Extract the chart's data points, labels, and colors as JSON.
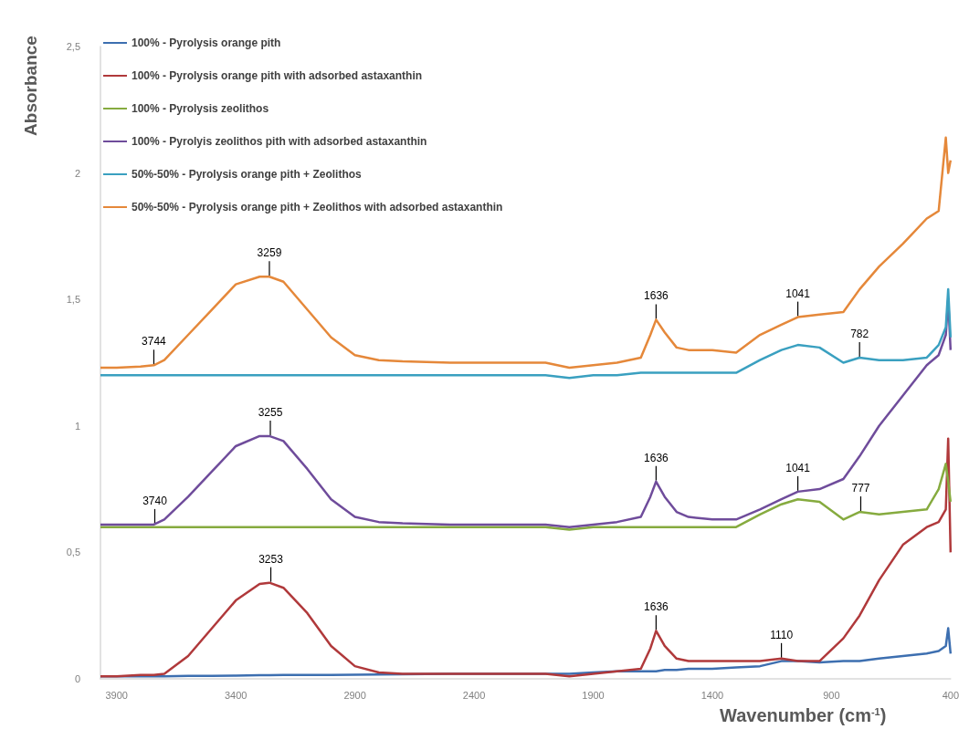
{
  "chart_data": {
    "type": "line",
    "xlabel": "Wavenumber (cm$^{-1}$)",
    "ylabel": "Absorbance",
    "x": [
      3968,
      3900,
      3800,
      3744,
      3700,
      3600,
      3500,
      3400,
      3300,
      3259,
      3200,
      3100,
      3000,
      2900,
      2800,
      2700,
      2500,
      2300,
      2100,
      2000,
      1900,
      1800,
      1700,
      1660,
      1636,
      1600,
      1550,
      1500,
      1400,
      1300,
      1200,
      1110,
      1041,
      950,
      850,
      782,
      700,
      600,
      500,
      450,
      420,
      410,
      400
    ],
    "series": [
      {
        "name": "100% - Pyrolysis orange pith",
        "color": "#3d6fb0",
        "values": [
          0.01,
          0.01,
          0.01,
          0.01,
          0.01,
          0.012,
          0.012,
          0.013,
          0.014,
          0.014,
          0.015,
          0.015,
          0.015,
          0.016,
          0.017,
          0.018,
          0.02,
          0.02,
          0.02,
          0.02,
          0.025,
          0.03,
          0.03,
          0.03,
          0.03,
          0.035,
          0.035,
          0.04,
          0.04,
          0.045,
          0.05,
          0.07,
          0.07,
          0.065,
          0.07,
          0.07,
          0.08,
          0.09,
          0.1,
          0.11,
          0.13,
          0.2,
          0.1
        ]
      },
      {
        "name": "100% - Pyrolysis orange pith with adsorbed astaxanthin",
        "color": "#b0393b",
        "values": [
          0.01,
          0.01,
          0.015,
          0.015,
          0.02,
          0.09,
          0.2,
          0.31,
          0.375,
          0.38,
          0.36,
          0.26,
          0.13,
          0.05,
          0.025,
          0.02,
          0.02,
          0.02,
          0.02,
          0.01,
          0.02,
          0.03,
          0.04,
          0.12,
          0.19,
          0.13,
          0.08,
          0.07,
          0.07,
          0.07,
          0.07,
          0.08,
          0.07,
          0.07,
          0.16,
          0.25,
          0.39,
          0.53,
          0.6,
          0.62,
          0.67,
          0.95,
          0.5
        ]
      },
      {
        "name": "100% - Pyrolysis zeolithos",
        "color": "#86ab3f",
        "values": [
          0.6,
          0.6,
          0.6,
          0.6,
          0.6,
          0.6,
          0.6,
          0.6,
          0.6,
          0.6,
          0.6,
          0.6,
          0.6,
          0.6,
          0.6,
          0.6,
          0.6,
          0.6,
          0.6,
          0.59,
          0.6,
          0.6,
          0.6,
          0.6,
          0.6,
          0.6,
          0.6,
          0.6,
          0.6,
          0.6,
          0.65,
          0.69,
          0.71,
          0.7,
          0.63,
          0.66,
          0.65,
          0.66,
          0.67,
          0.75,
          0.85,
          0.78,
          0.7
        ]
      },
      {
        "name": "100% - Pyrolyis zeolithos pith with adsorbed astaxanthin",
        "color": "#6f4c9b",
        "values": [
          0.61,
          0.61,
          0.61,
          0.61,
          0.63,
          0.72,
          0.82,
          0.92,
          0.96,
          0.96,
          0.94,
          0.83,
          0.71,
          0.64,
          0.62,
          0.615,
          0.61,
          0.61,
          0.61,
          0.6,
          0.61,
          0.62,
          0.64,
          0.72,
          0.78,
          0.72,
          0.66,
          0.64,
          0.63,
          0.63,
          0.67,
          0.71,
          0.74,
          0.75,
          0.79,
          0.88,
          1.0,
          1.12,
          1.24,
          1.28,
          1.36,
          1.5,
          1.3
        ]
      },
      {
        "name": "50%-50% - Pyrolysis orange pith + Zeolithos",
        "color": "#3aa0c0",
        "values": [
          1.2,
          1.2,
          1.2,
          1.2,
          1.2,
          1.2,
          1.2,
          1.2,
          1.2,
          1.2,
          1.2,
          1.2,
          1.2,
          1.2,
          1.2,
          1.2,
          1.2,
          1.2,
          1.2,
          1.19,
          1.2,
          1.2,
          1.21,
          1.21,
          1.21,
          1.21,
          1.21,
          1.21,
          1.21,
          1.21,
          1.26,
          1.3,
          1.32,
          1.31,
          1.25,
          1.27,
          1.26,
          1.26,
          1.27,
          1.32,
          1.39,
          1.54,
          1.35
        ]
      },
      {
        "name": "50%-50% - Pyrolysis orange pith + Zeolithos with adsorbed astaxanthin",
        "color": "#e5883a",
        "values": [
          1.23,
          1.23,
          1.235,
          1.24,
          1.26,
          1.36,
          1.46,
          1.56,
          1.59,
          1.59,
          1.57,
          1.46,
          1.35,
          1.28,
          1.26,
          1.255,
          1.25,
          1.25,
          1.25,
          1.23,
          1.24,
          1.25,
          1.27,
          1.36,
          1.42,
          1.37,
          1.31,
          1.3,
          1.3,
          1.29,
          1.36,
          1.4,
          1.43,
          1.44,
          1.45,
          1.54,
          1.63,
          1.72,
          1.82,
          1.85,
          2.14,
          2.0,
          2.05
        ]
      }
    ],
    "xlim": [
      3968,
      400
    ],
    "xticks": [
      3900,
      3400,
      2900,
      2400,
      1900,
      1400,
      900,
      400
    ],
    "ylim": [
      0,
      2.5
    ],
    "yticks": [
      0,
      {
        "value": 0.5,
        "label": "0,5"
      },
      1,
      {
        "value": 1.5,
        "label": "1,5"
      },
      2,
      {
        "value": 2.5,
        "label": "2,5"
      }
    ],
    "annotations": [
      {
        "text": "3744",
        "x": 3744,
        "y": 1.24
      },
      {
        "text": "3259",
        "x": 3259,
        "y": 1.59
      },
      {
        "text": "1636",
        "x": 1636,
        "y": 1.42
      },
      {
        "text": "1041",
        "x": 1041,
        "y": 1.43
      },
      {
        "text": "782",
        "x": 782,
        "y": 1.27
      },
      {
        "text": "3740",
        "x": 3740,
        "y": 0.61
      },
      {
        "text": "3255",
        "x": 3255,
        "y": 0.96
      },
      {
        "text": "1636",
        "x": 1636,
        "y": 0.78
      },
      {
        "text": "1041",
        "x": 1041,
        "y": 0.74
      },
      {
        "text": "777",
        "x": 777,
        "y": 0.66
      },
      {
        "text": "3253",
        "x": 3253,
        "y": 0.38
      },
      {
        "text": "1636",
        "x": 1636,
        "y": 0.19
      },
      {
        "text": "1110",
        "x": 1110,
        "y": 0.08
      }
    ],
    "legend": "top left",
    "marker": "none"
  }
}
